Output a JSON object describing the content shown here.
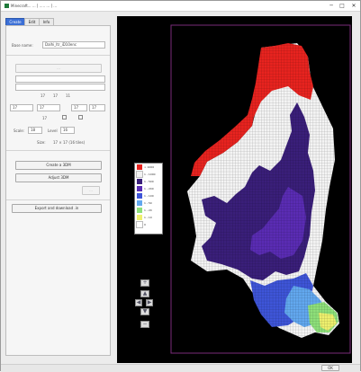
{
  "window": {
    "title": "Minecraft...  ... [ .....  ... ] ...",
    "min_glyph": "─",
    "max_glyph": "□",
    "close_glyph": "✕"
  },
  "tabs": [
    "Create",
    "Edit",
    "Info"
  ],
  "form": {
    "label_1": "Base name:",
    "field_1": "Dalhi_ltr_iD10enc",
    "button_fetch": "...",
    "row_a": [
      "17",
      "17",
      "11"
    ],
    "row_b": [
      "17",
      "17",
      "17",
      "17",
      "17"
    ],
    "label_res": "Scale:",
    "label_lvl": "Level",
    "res_value": "18",
    "lvl_value": "16",
    "label_size": "Size:",
    "size_value": "17 × 17 (16 tiles)",
    "btn_create": "Create a 3DM",
    "btn_adjust": "Adjust 3DM",
    "btn_small": "...",
    "btn_export": "Export and download .in"
  },
  "legend": {
    "entries": [
      {
        "label": "> 1000",
        "color": "#e8231f"
      },
      {
        "label": "1 - 1000",
        "color": "#f2f2f2"
      },
      {
        "label": "1 - 500",
        "color": "#3a1f7a"
      },
      {
        "label": "1 - 200",
        "color": "#5a2cb4"
      },
      {
        "label": "1 - 100",
        "color": "#3e55d8"
      },
      {
        "label": "1 - 50",
        "color": "#62a8ef"
      },
      {
        "label": "1 - 20",
        "color": "#8ee07a"
      },
      {
        "label": "1 - 10",
        "color": "#eef06e"
      },
      {
        "label": "0",
        "color": "#ffffff"
      }
    ]
  },
  "nav": {
    "up": "▲",
    "left": "◀",
    "right": "▶",
    "down": "▼",
    "zoom_in": "+",
    "zoom_out": "−"
  },
  "status": {
    "text": "OK"
  }
}
